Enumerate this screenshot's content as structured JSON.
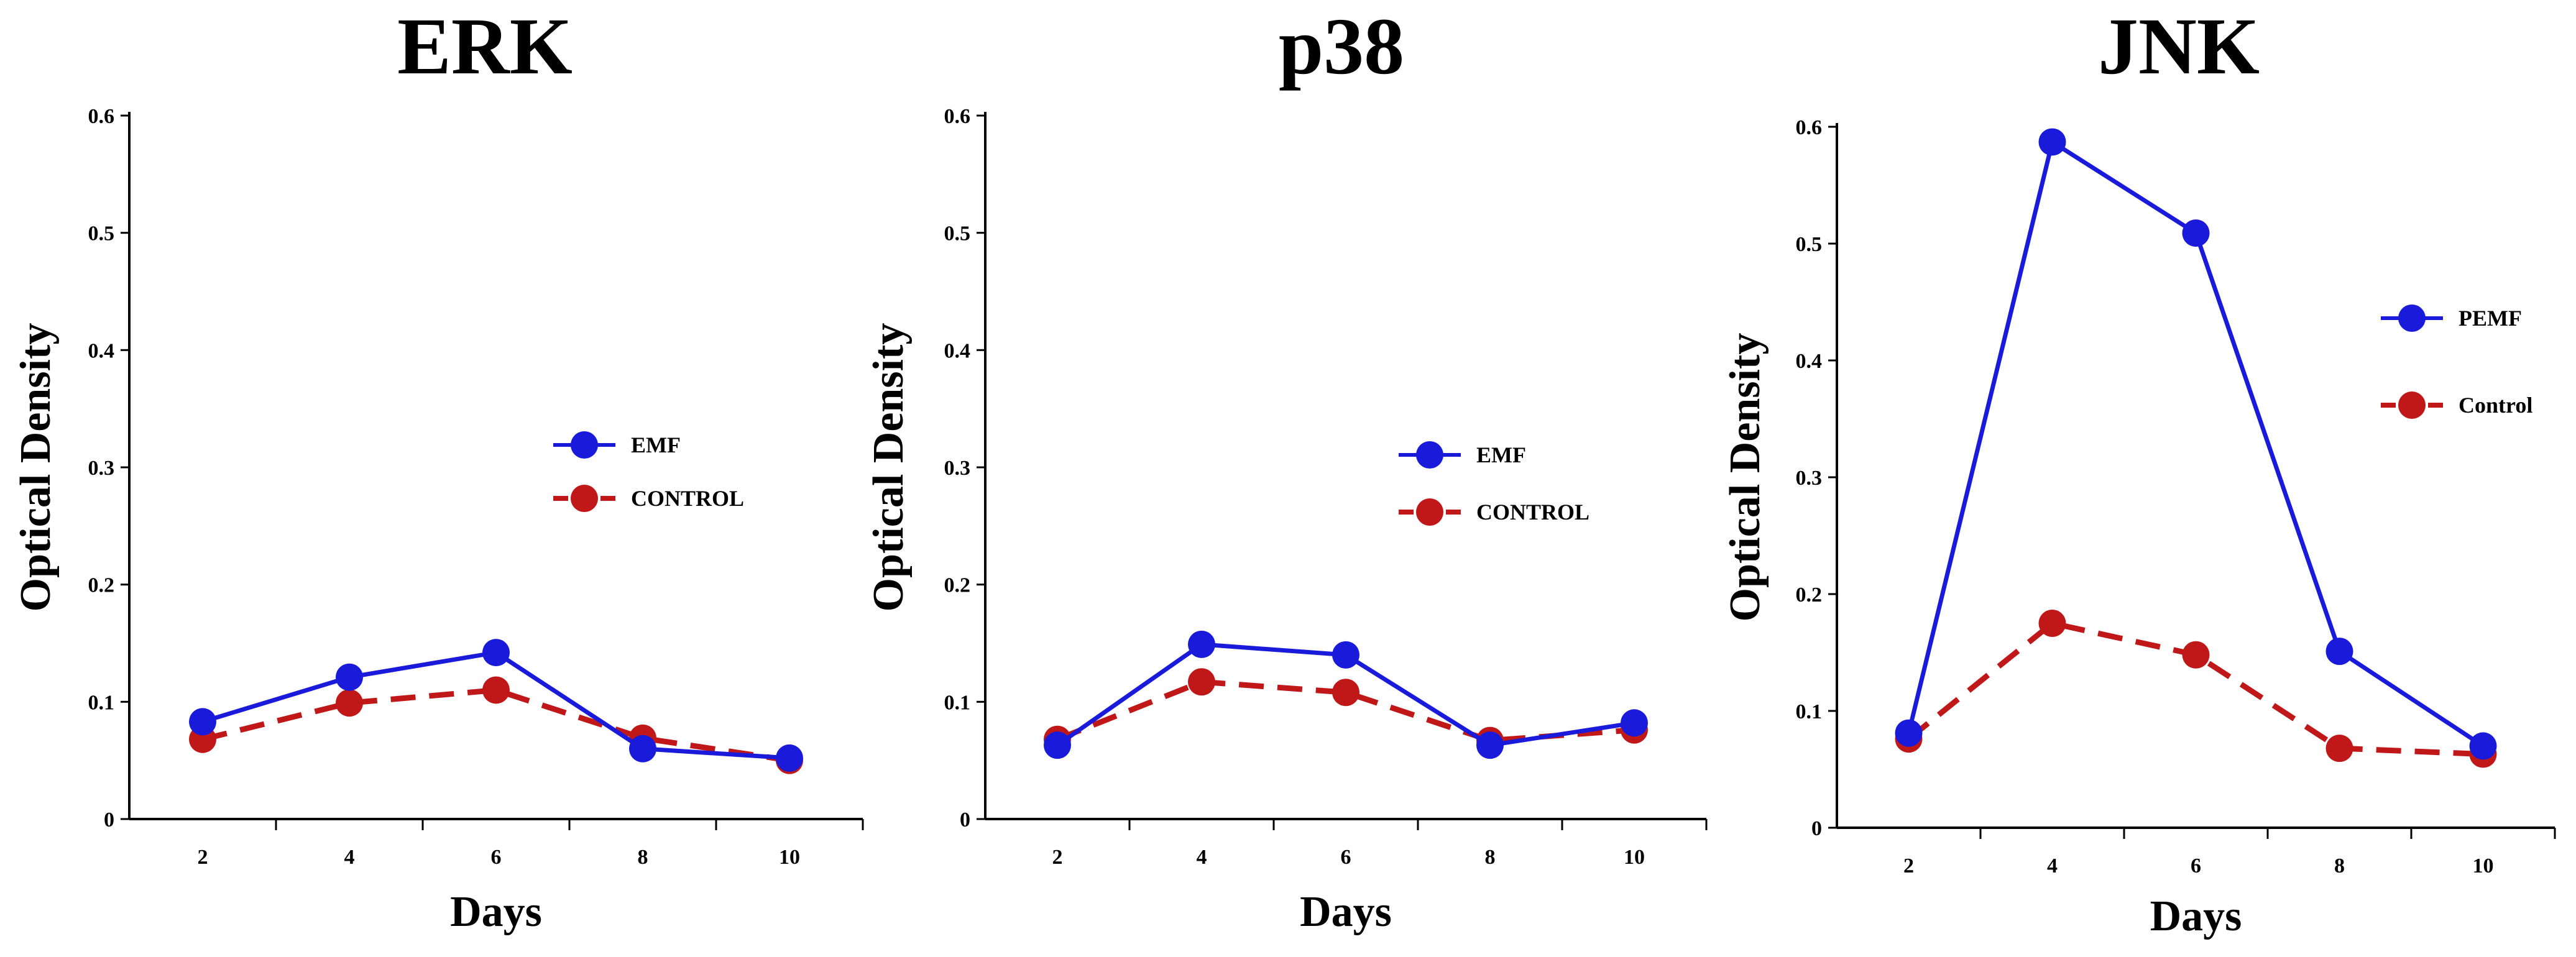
{
  "chart_data": [
    {
      "type": "line",
      "title": "ERK",
      "xlabel": "Days",
      "ylabel": "Optical Density",
      "categories": [
        "2",
        "4",
        "6",
        "8",
        "10"
      ],
      "yticks": [
        "0",
        "0.1",
        "0.2",
        "0.3",
        "0.4",
        "0.5",
        "0.6"
      ],
      "ylim": [
        0,
        0.6
      ],
      "grid": false,
      "legend_position": "right",
      "series": [
        {
          "name": "EMF",
          "values": [
            0.083,
            0.121,
            0.142,
            0.06,
            0.052
          ],
          "color": "#1a1adb",
          "dash": false
        },
        {
          "name": "CONTROL",
          "values": [
            0.068,
            0.099,
            0.11,
            0.069,
            0.05
          ],
          "color": "#c01818",
          "dash": true
        }
      ]
    },
    {
      "type": "line",
      "title": "p38",
      "xlabel": "Days",
      "ylabel": "Optical Density",
      "categories": [
        "2",
        "4",
        "6",
        "8",
        "10"
      ],
      "yticks": [
        "0",
        "0.1",
        "0.2",
        "0.3",
        "0.4",
        "0.5",
        "0.6"
      ],
      "ylim": [
        0,
        0.6
      ],
      "grid": false,
      "legend_position": "right",
      "series": [
        {
          "name": "EMF",
          "values": [
            0.063,
            0.149,
            0.14,
            0.063,
            0.082
          ],
          "color": "#1a1adb",
          "dash": false
        },
        {
          "name": "CONTROL",
          "values": [
            0.068,
            0.117,
            0.108,
            0.067,
            0.076
          ],
          "color": "#c01818",
          "dash": true
        }
      ]
    },
    {
      "type": "line",
      "title": "JNK",
      "xlabel": "Days",
      "ylabel": "Optical Density",
      "categories": [
        "2",
        "4",
        "6",
        "8",
        "10"
      ],
      "yticks": [
        "0",
        "0.1",
        "0.2",
        "0.3",
        "0.4",
        "0.5",
        "0.6"
      ],
      "ylim": [
        0,
        0.6
      ],
      "grid": false,
      "legend_position": "top-right",
      "series": [
        {
          "name": "PEMF",
          "values": [
            0.081,
            0.587,
            0.509,
            0.151,
            0.07
          ],
          "color": "#1a1adb",
          "dash": false
        },
        {
          "name": "Control",
          "values": [
            0.076,
            0.175,
            0.148,
            0.068,
            0.063
          ],
          "color": "#c01818",
          "dash": true
        }
      ]
    }
  ]
}
